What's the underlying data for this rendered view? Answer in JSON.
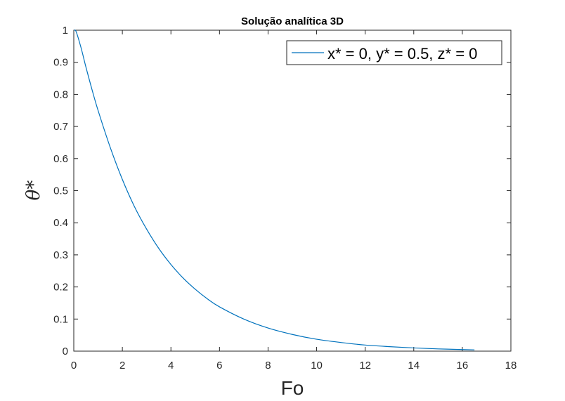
{
  "chart_data": {
    "type": "line",
    "title": "Solução analítica 3D",
    "xlabel": "Fo",
    "ylabel": "θ*",
    "xlim": [
      0,
      18
    ],
    "ylim": [
      0,
      1
    ],
    "xticks": [
      0,
      2,
      4,
      6,
      8,
      10,
      12,
      14,
      16,
      18
    ],
    "yticks": [
      0,
      0.1,
      0.2,
      0.3,
      0.4,
      0.5,
      0.6,
      0.7,
      0.8,
      0.9,
      1
    ],
    "grid": false,
    "legend_position": "top-right",
    "series": [
      {
        "name": "x* = 0, y* = 0.5, z* = 0",
        "color": "#0072BD",
        "x": [
          0.02,
          0.1,
          0.3,
          0.5,
          0.75,
          1,
          1.5,
          2,
          2.5,
          3,
          3.5,
          4,
          4.5,
          5,
          5.5,
          6,
          7,
          8,
          9,
          10,
          11,
          12,
          13,
          14,
          15,
          16,
          16.5
        ],
        "y": [
          1.0,
          0.995,
          0.945,
          0.885,
          0.815,
          0.75,
          0.635,
          0.535,
          0.45,
          0.38,
          0.32,
          0.27,
          0.228,
          0.193,
          0.163,
          0.138,
          0.1,
          0.072,
          0.052,
          0.037,
          0.027,
          0.019,
          0.014,
          0.01,
          0.007,
          0.005,
          0.004
        ]
      }
    ]
  }
}
